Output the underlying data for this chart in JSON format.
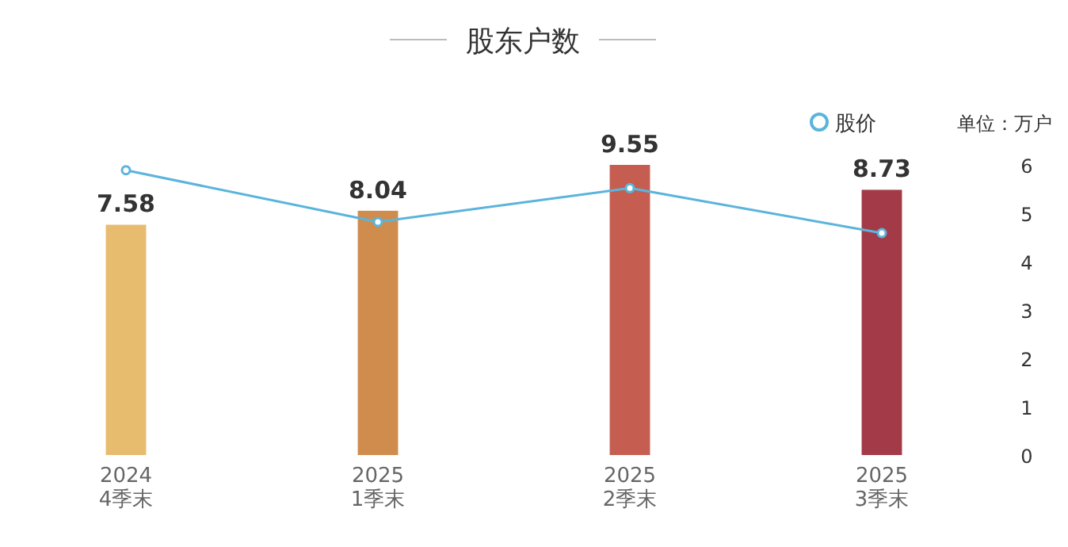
{
  "chart_data": {
    "type": "bar",
    "title": "股东户数",
    "y2label": "单位：万户",
    "categories": [
      "2024\n4季末",
      "2025\n1季末",
      "2025\n2季末",
      "2025\n3季末"
    ],
    "y2lim": [
      0,
      6
    ],
    "y2ticks": [
      0,
      1,
      2,
      3,
      4,
      5,
      6
    ],
    "legend": "top right",
    "series": [
      {
        "colors": [
          "#e8bc6e",
          "#d08c4c",
          "#c55d50",
          "#a33a48"
        ],
        "values": [
          7.58,
          8.04,
          9.55,
          8.73
        ],
        "value_labels": [
          "7.58",
          "8.04",
          "9.55",
          "8.73"
        ]
      },
      {
        "type": "line",
        "name": "股价",
        "color": "#5ab4dc",
        "axis": "y2",
        "marker": "circle",
        "values": [
          5.89,
          4.82,
          5.52,
          4.59
        ]
      }
    ]
  }
}
